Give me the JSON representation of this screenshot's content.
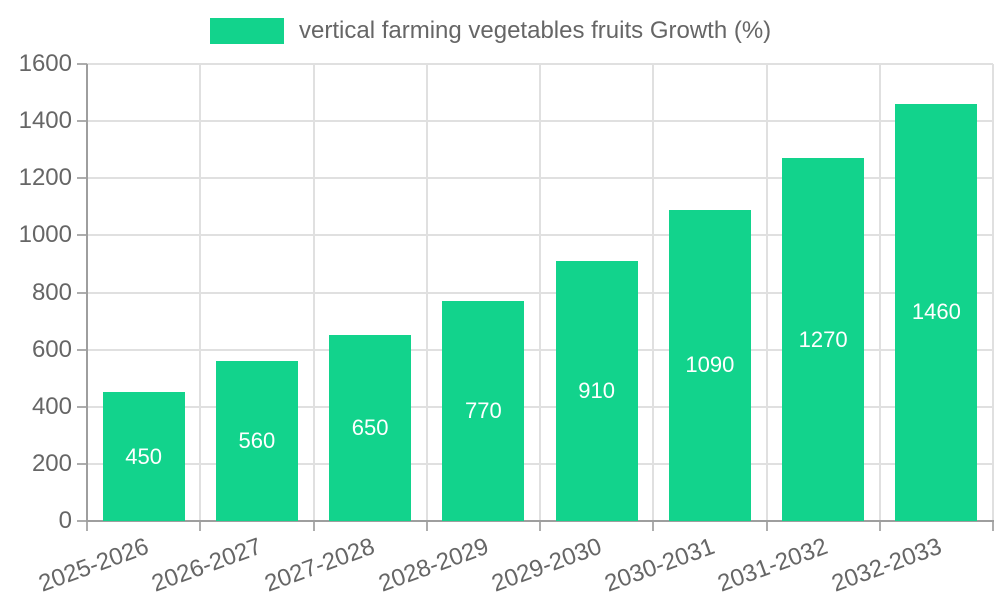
{
  "chart_data": {
    "type": "bar",
    "title": "vertical farming vegetables fruits Growth (%)",
    "legend_position": "top",
    "categories": [
      "2025-2026",
      "2026-2027",
      "2027-2028",
      "2028-2029",
      "2029-2030",
      "2030-2031",
      "2031-2032",
      "2032-2033"
    ],
    "values": [
      450,
      560,
      650,
      770,
      910,
      1090,
      1270,
      1460
    ],
    "value_labels": [
      "450",
      "560",
      "650",
      "770",
      "910",
      "1090",
      "1270",
      "1460"
    ],
    "xlabel": "",
    "ylabel": "",
    "ylim": [
      0,
      1600
    ],
    "yticks": [
      0,
      200,
      400,
      600,
      800,
      1000,
      1200,
      1400,
      1600
    ],
    "grid": true,
    "x_label_rotation_deg": -20,
    "colors": {
      "bar": "#12D38C",
      "bar_value_label": "#FFFFFF",
      "grid": "#E0E0E0",
      "axis": "#9E9E9E",
      "tick_mark": "#ADADAD",
      "tick_text": "#666666",
      "background": "#FFFFFF"
    }
  }
}
